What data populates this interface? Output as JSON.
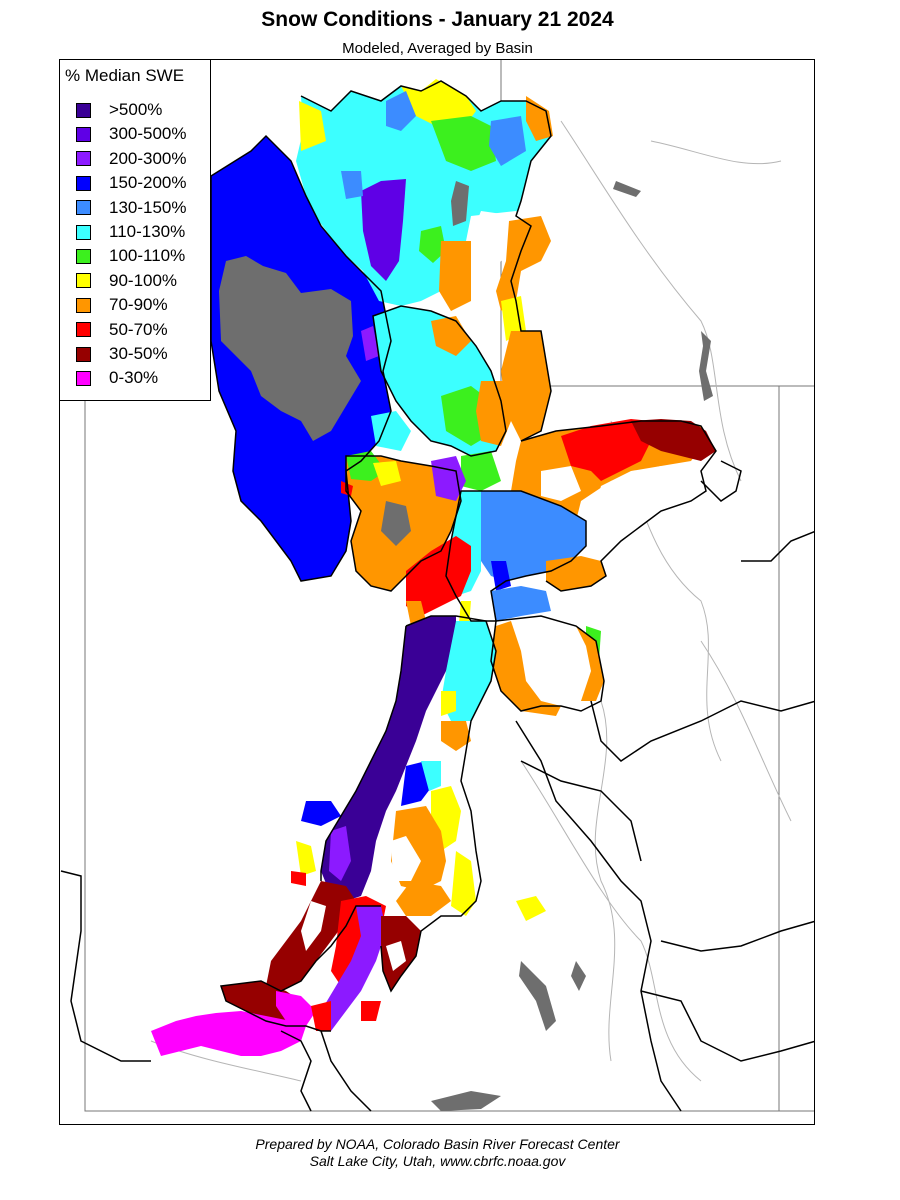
{
  "header": {
    "title": "Snow Conditions - January 21 2024",
    "subtitle": "Modeled, Averaged by Basin"
  },
  "legend": {
    "title": "% Median SWE",
    "items": [
      {
        "label": ">500%",
        "color": "#3a0096"
      },
      {
        "label": "300-500%",
        "color": "#5f00e6"
      },
      {
        "label": "200-300%",
        "color": "#8c1aff"
      },
      {
        "label": "150-200%",
        "color": "#0000ff"
      },
      {
        "label": "130-150%",
        "color": "#3c8cff"
      },
      {
        "label": "110-130%",
        "color": "#3cffff"
      },
      {
        "label": "100-110%",
        "color": "#3cf01e"
      },
      {
        "label": "90-100%",
        "color": "#ffff00"
      },
      {
        "label": "70-90%",
        "color": "#ff9600"
      },
      {
        "label": "50-70%",
        "color": "#ff0000"
      },
      {
        "label": "30-50%",
        "color": "#960000"
      },
      {
        "label": "0-30%",
        "color": "#ff00ff"
      }
    ]
  },
  "map": {
    "lake_color": "#6e6e6e",
    "basin_outline_color": "#000000",
    "river_color": "#a0a0a0"
  },
  "footer": {
    "line1": "Prepared by NOAA, Colorado Basin River Forecast Center",
    "line2": "Salt Lake City, Utah, www.cbrfc.noaa.gov"
  }
}
